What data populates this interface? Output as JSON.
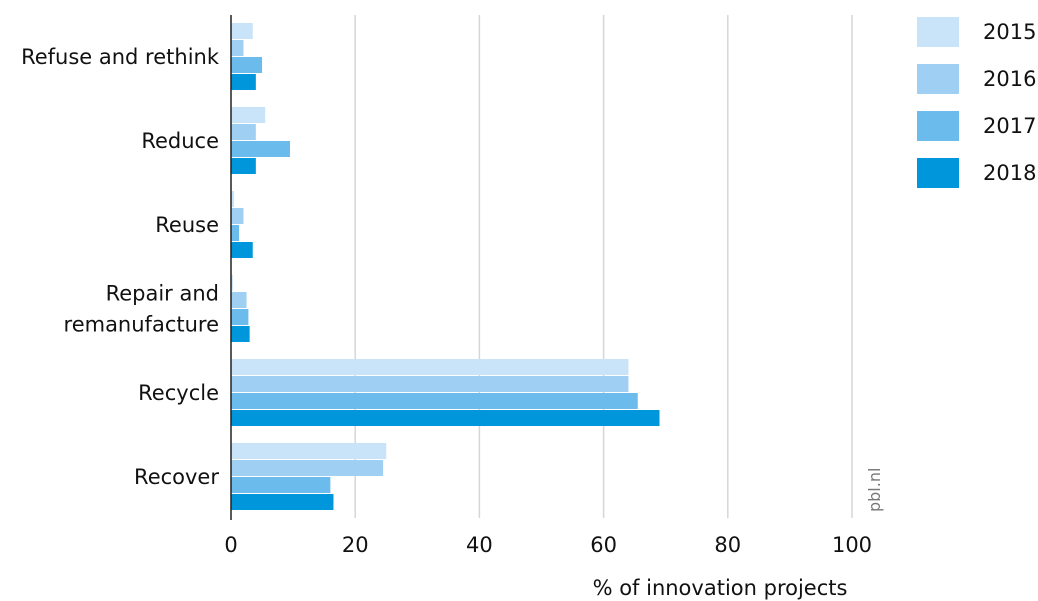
{
  "chart_data": {
    "type": "bar",
    "orientation": "horizontal",
    "categories": [
      "Refuse and rethink",
      "Reduce",
      "Reuse",
      "Repair and remanufacture",
      "Recycle",
      "Recover"
    ],
    "category_lines": [
      [
        "Refuse and rethink"
      ],
      [
        "Reduce"
      ],
      [
        "Reuse"
      ],
      [
        "Repair and",
        "remanufacture"
      ],
      [
        "Recycle"
      ],
      [
        "Recover"
      ]
    ],
    "series": [
      {
        "name": "2015",
        "color": "#c9e3f8",
        "values": [
          3.5,
          5.5,
          0.5,
          0.3,
          64,
          25
        ]
      },
      {
        "name": "2016",
        "color": "#9fd0f3",
        "values": [
          2,
          4,
          2,
          2.5,
          64,
          24.5
        ]
      },
      {
        "name": "2017",
        "color": "#6bbcec",
        "values": [
          5,
          9.5,
          1.3,
          2.8,
          65.5,
          16
        ]
      },
      {
        "name": "2018",
        "color": "#0096dc",
        "values": [
          4,
          4,
          3.5,
          3,
          69,
          16.5
        ]
      }
    ],
    "xlim": [
      0,
      100
    ],
    "xticks": [
      0,
      20,
      40,
      60,
      80,
      100
    ],
    "xlabel": "% of innovation projects",
    "ylabel": "",
    "grid": true,
    "legend_position": "top-right",
    "source": "pbl.nl"
  }
}
